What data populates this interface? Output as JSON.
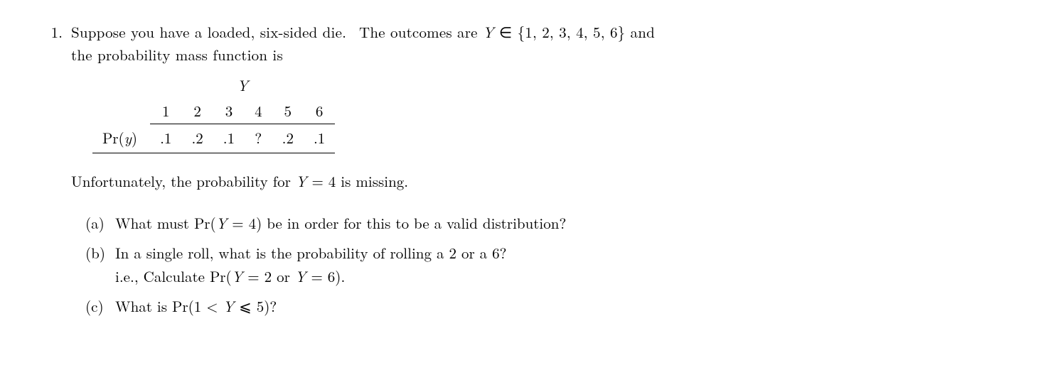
{
  "problem": {
    "number": "1.",
    "intro_line1": "Suppose you have a loaded, six-sided die.  The outcomes are Y ∈ {1, 2, 3, 4, 5, 6} and",
    "intro_line2": "the probability mass function is",
    "table": {
      "header_Y": "Y",
      "row_label": "Pr(y)",
      "columns": [
        "1",
        "2",
        "3",
        "4",
        "5",
        "6"
      ],
      "values": [
        ".1",
        ".2",
        ".1",
        "?",
        ".2",
        ".1"
      ]
    },
    "missing_text": "Unfortunately, the probability for Y = 4 is missing.",
    "subparts": {
      "a": {
        "label": "(a)",
        "text": "What must Pr(Y = 4) be in order for this to be a valid distribution?"
      },
      "b": {
        "label": "(b)",
        "line1": "In a single roll, what is the probability of rolling a 2 or a 6?",
        "line2": "i.e., Calculate Pr(Y = 2 or Y = 6)."
      },
      "c": {
        "label": "(c)",
        "text": "What is Pr(1 < Y ⩽ 5)?"
      }
    }
  }
}
